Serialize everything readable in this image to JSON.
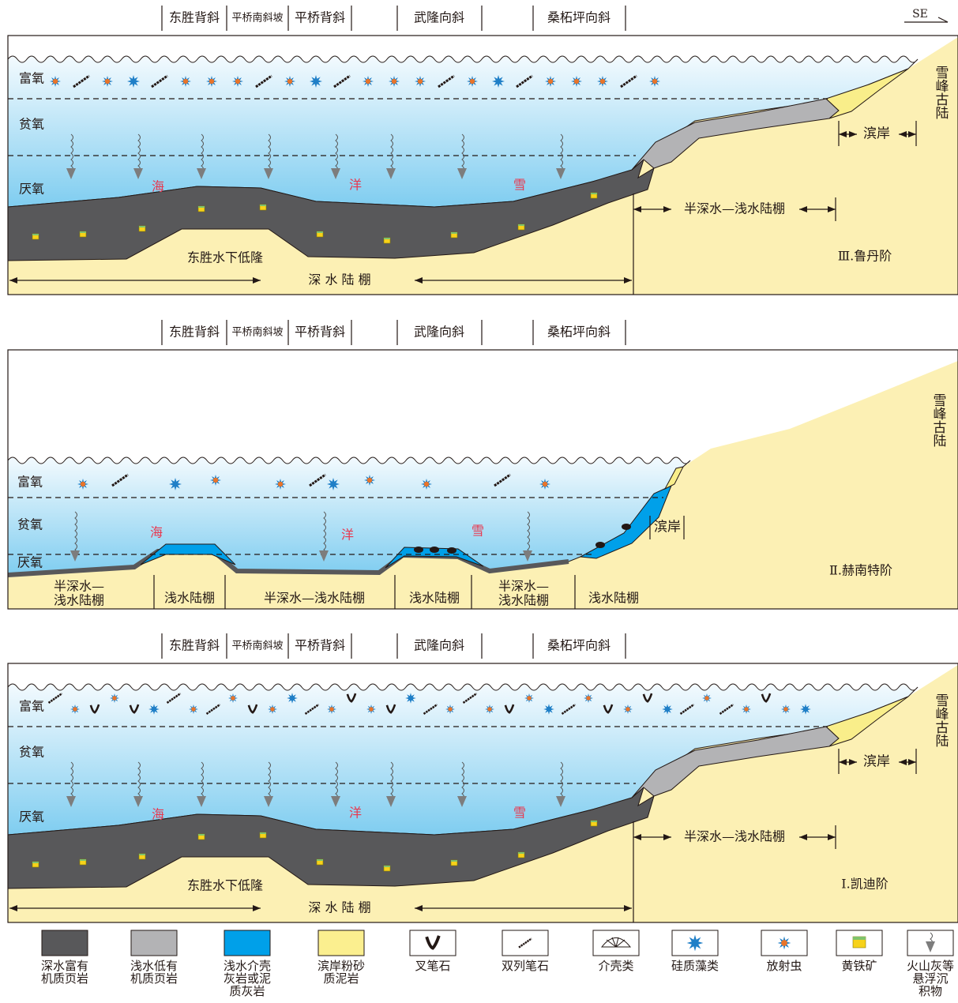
{
  "direction": "SE",
  "panels": [
    {
      "structures": [
        "东胜背斜",
        "平桥南斜坡",
        "平桥背斜",
        "武隆向斜",
        "桑柘坪向斜"
      ],
      "zones": [
        "富氧",
        "贫氧",
        "厌氧"
      ],
      "sea": [
        "海",
        "洋",
        "雪"
      ],
      "land": "雪峰古陆",
      "high": "东胜水下低隆",
      "deep_shelf": "深 水 陆 棚",
      "mid_shelf": "半深水—浅水陆棚",
      "shore": "滨岸",
      "stage": "Ⅲ.鲁丹阶"
    },
    {
      "structures": [
        "东胜背斜",
        "平桥南斜坡",
        "平桥背斜",
        "武隆向斜",
        "桑柘坪向斜"
      ],
      "zones": [
        "富氧",
        "贫氧",
        "厌氧"
      ],
      "sea": [
        "海",
        "洋",
        "雪"
      ],
      "land": "雪峰古陆",
      "shelves": [
        [
          "半深水—",
          "浅水陆棚"
        ],
        [
          "浅水陆棚"
        ],
        [
          "半深水—浅水陆棚"
        ],
        [
          "浅水陆棚"
        ],
        [
          "半深水—",
          "浅水陆棚"
        ],
        [
          "浅水陆棚"
        ]
      ],
      "shore": "滨岸",
      "stage": "Ⅱ.赫南特阶"
    },
    {
      "structures": [
        "东胜背斜",
        "平桥南斜坡",
        "平桥背斜",
        "武隆向斜",
        "桑柘坪向斜"
      ],
      "zones": [
        "富氧",
        "贫氧",
        "厌氧"
      ],
      "sea": [
        "海",
        "洋",
        "雪"
      ],
      "land": "雪峰古陆",
      "high": "东胜水下低隆",
      "deep_shelf": "深 水 陆 棚",
      "mid_shelf": "半深水—浅水陆棚",
      "shore": "滨岸",
      "stage": "Ⅰ.凯迪阶"
    }
  ],
  "legend": [
    [
      "深水富有",
      "机质页岩"
    ],
    [
      "浅水低有",
      "机质页岩"
    ],
    [
      "浅水介壳",
      "灰岩或泥",
      "质灰岩"
    ],
    [
      "滨岸粉砂",
      "质泥岩"
    ],
    [
      "叉笔石"
    ],
    [
      "双列笔石"
    ],
    [
      "介壳类"
    ],
    [
      "硅质藻类"
    ],
    [
      "放射虫"
    ],
    [
      "黄铁矿"
    ],
    [
      "火山灰等",
      "悬浮沉",
      "积物"
    ]
  ]
}
